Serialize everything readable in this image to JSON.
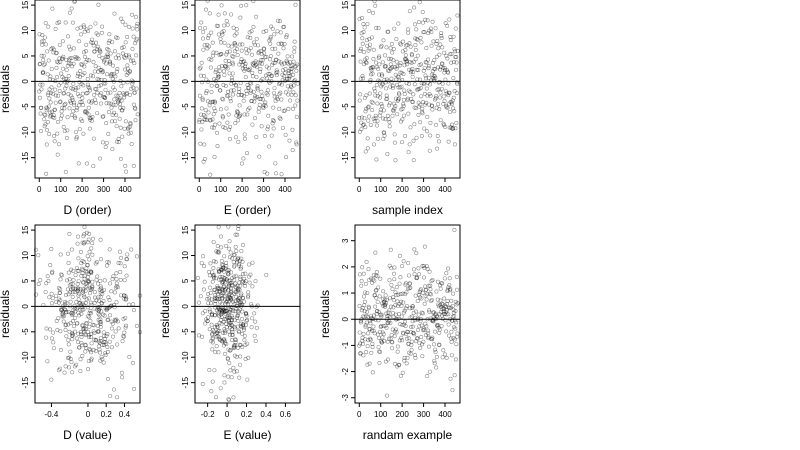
{
  "chart_data": [
    {
      "type": "scatter",
      "xlabel": "D (order)",
      "ylabel": "residuals",
      "xlim": [
        -20,
        470
      ],
      "ylim": [
        -19,
        16
      ],
      "xticks": [
        0,
        100,
        200,
        300,
        400
      ],
      "yticks": [
        -15,
        -10,
        -5,
        0,
        5,
        10,
        15
      ],
      "hline": 0,
      "n_points": 460,
      "x_pattern": "index",
      "y_spread": 7.2,
      "seed": 11,
      "grid": false,
      "legend": "none"
    },
    {
      "type": "scatter",
      "xlabel": "E (order)",
      "ylabel": "residuals",
      "xlim": [
        -20,
        470
      ],
      "ylim": [
        -19,
        16
      ],
      "xticks": [
        0,
        100,
        200,
        300,
        400
      ],
      "yticks": [
        -15,
        -10,
        -5,
        0,
        5,
        10,
        15
      ],
      "hline": 0,
      "n_points": 460,
      "x_pattern": "index",
      "y_spread": 7.2,
      "seed": 23,
      "grid": false,
      "legend": "none"
    },
    {
      "type": "scatter",
      "xlabel": "sample index",
      "ylabel": "residuals",
      "xlim": [
        -20,
        470
      ],
      "ylim": [
        -19,
        16
      ],
      "xticks": [
        0,
        100,
        200,
        300,
        400
      ],
      "yticks": [
        -15,
        -10,
        -5,
        0,
        5,
        10,
        15
      ],
      "hline": 0,
      "n_points": 460,
      "x_pattern": "index",
      "y_spread": 6.5,
      "seed": 37,
      "grid": false,
      "legend": "none"
    },
    {
      "type": "scatter",
      "xlabel": "D (value)",
      "ylabel": "residuals",
      "xlim": [
        -0.58,
        0.57
      ],
      "ylim": [
        -19,
        16
      ],
      "xticks": [
        -0.4,
        0,
        0.2,
        0.4
      ],
      "yticks": [
        -15,
        -10,
        -5,
        0,
        5,
        10,
        15
      ],
      "hline": 0,
      "n_points": 460,
      "x_pattern": "value",
      "x_center": 0.0,
      "x_spread": 0.25,
      "y_spread": 7.0,
      "seed": 41,
      "grid": false,
      "legend": "none"
    },
    {
      "type": "scatter",
      "xlabel": "E (value)",
      "ylabel": "residuals",
      "xlim": [
        -0.33,
        0.75
      ],
      "ylim": [
        -19,
        16
      ],
      "xticks": [
        -0.2,
        0,
        0.2,
        0.4,
        0.6
      ],
      "yticks": [
        -15,
        -10,
        -5,
        0,
        5,
        10,
        15
      ],
      "hline": 0,
      "n_points": 460,
      "x_pattern": "value",
      "x_center": 0.02,
      "x_spread": 0.14,
      "y_spread": 7.0,
      "seed": 53,
      "grid": false,
      "legend": "none"
    },
    {
      "type": "scatter",
      "xlabel": "randam example",
      "ylabel": "residuals",
      "xlim": [
        -20,
        470
      ],
      "ylim": [
        -3.2,
        3.6
      ],
      "xticks": [
        0,
        100,
        200,
        300,
        400
      ],
      "yticks": [
        -3,
        -2,
        -1,
        0,
        1,
        2,
        3
      ],
      "hline": 0,
      "n_points": 460,
      "x_pattern": "index",
      "y_spread": 1.0,
      "seed": 67,
      "grid": false,
      "legend": "none"
    }
  ]
}
